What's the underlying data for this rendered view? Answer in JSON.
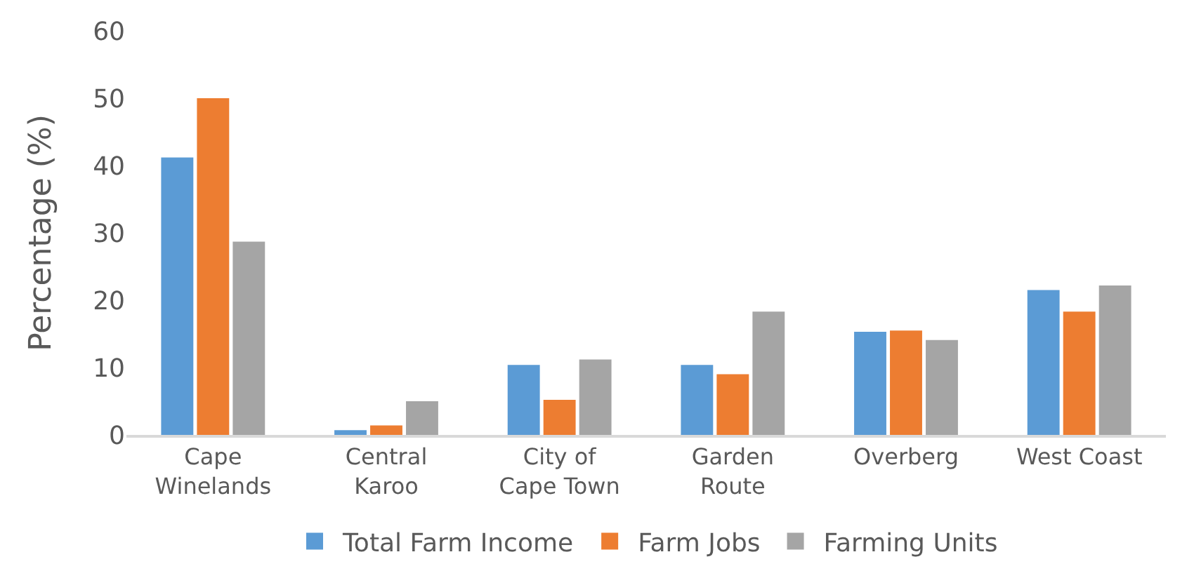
{
  "chart_data": {
    "type": "bar",
    "ylabel": "Percentage (%)",
    "categories": [
      "Cape\nWinelands",
      "Central\nKaroo",
      "City of\nCape Town",
      "Garden\nRoute",
      "Overberg",
      "West Coast"
    ],
    "series": [
      {
        "name": "Total Farm Income",
        "color": "#5b9bd5",
        "values": [
          41.2,
          0.7,
          10.4,
          10.4,
          15.3,
          21.5
        ]
      },
      {
        "name": "Farm Jobs",
        "color": "#ed7d31",
        "values": [
          50,
          1.4,
          5.2,
          9.0,
          15.5,
          18.3
        ]
      },
      {
        "name": "Farming Units",
        "color": "#a5a5a5",
        "values": [
          28.7,
          5.0,
          11.2,
          18.3,
          14.1,
          22.2
        ]
      }
    ],
    "ylim": [
      0,
      60
    ],
    "yticks": [
      0,
      10,
      20,
      30,
      40,
      50,
      60
    ],
    "grid": false,
    "legend": "bottom"
  }
}
